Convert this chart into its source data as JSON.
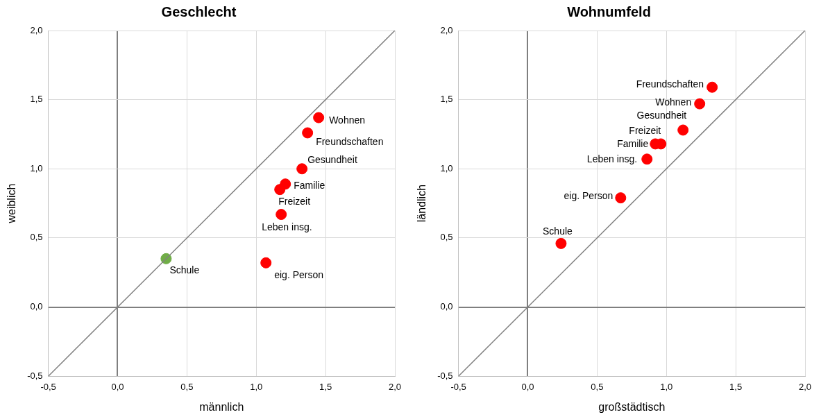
{
  "chart_data": [
    {
      "type": "scatter",
      "title": "Geschlecht",
      "xlabel": "männlich",
      "ylabel": "weiblich",
      "xlim": [
        -0.5,
        2
      ],
      "ylim": [
        -0.5,
        2
      ],
      "xticks": [
        {
          "value": -0.5,
          "label": "-0,5"
        },
        {
          "value": 0,
          "label": "0,0"
        },
        {
          "value": 0.5,
          "label": "0,5"
        },
        {
          "value": 1,
          "label": "1,0"
        },
        {
          "value": 1.5,
          "label": "1,5"
        },
        {
          "value": 2,
          "label": "2,0"
        }
      ],
      "yticks": [
        {
          "value": -0.5,
          "label": "-0,5"
        },
        {
          "value": 0,
          "label": "0,0"
        },
        {
          "value": 0.5,
          "label": "0,5"
        },
        {
          "value": 1,
          "label": "1,0"
        },
        {
          "value": 1.5,
          "label": "1,5"
        },
        {
          "value": 2,
          "label": "2,0"
        }
      ],
      "grid": true,
      "legend": false,
      "marker": "circle",
      "series": [
        {
          "type": "line",
          "marker": "none",
          "color": "#808080",
          "x": [
            -0.5,
            2
          ],
          "values": [
            -0.5,
            2
          ]
        },
        {
          "x": [
            1.45,
            1.37,
            1.33,
            1.21,
            1.17,
            1.18,
            1.07,
            0.35
          ],
          "values": [
            1.37,
            1.26,
            1.0,
            0.89,
            0.85,
            0.67,
            0.32,
            0.35
          ],
          "colors": [
            "#ff0000",
            "#ff0000",
            "#ff0000",
            "#ff0000",
            "#ff0000",
            "#ff0000",
            "#ff0000",
            "#70ad47"
          ]
        }
      ],
      "annotations": [
        {
          "text": "Wohnen",
          "x": 1.45,
          "y": 1.37
        },
        {
          "text": "Freundschaften",
          "x": 1.37,
          "y": 1.26
        },
        {
          "text": "Gesundheit",
          "x": 1.33,
          "y": 1.0
        },
        {
          "text": "Familie",
          "x": 1.21,
          "y": 0.89
        },
        {
          "text": "Freizeit",
          "x": 1.17,
          "y": 0.85
        },
        {
          "text": "Leben insg.",
          "x": 1.18,
          "y": 0.67
        },
        {
          "text": "eig. Person",
          "x": 1.07,
          "y": 0.32
        },
        {
          "text": "Schule",
          "x": 0.35,
          "y": 0.35
        }
      ]
    },
    {
      "type": "scatter",
      "title": "Wohnumfeld",
      "xlabel": "großstädtisch",
      "ylabel": "ländlich",
      "xlim": [
        -0.5,
        2
      ],
      "ylim": [
        -0.5,
        2
      ],
      "xticks": [
        {
          "value": -0.5,
          "label": "-0,5"
        },
        {
          "value": 0,
          "label": "0,0"
        },
        {
          "value": 0.5,
          "label": "0,5"
        },
        {
          "value": 1,
          "label": "1,0"
        },
        {
          "value": 1.5,
          "label": "1,5"
        },
        {
          "value": 2,
          "label": "2,0"
        }
      ],
      "yticks": [
        {
          "value": -0.5,
          "label": "-0,5"
        },
        {
          "value": 0,
          "label": "0,0"
        },
        {
          "value": 0.5,
          "label": "0,5"
        },
        {
          "value": 1,
          "label": "1,0"
        },
        {
          "value": 1.5,
          "label": "1,5"
        },
        {
          "value": 2,
          "label": "2,0"
        }
      ],
      "grid": true,
      "legend": false,
      "marker": "circle",
      "series": [
        {
          "type": "line",
          "marker": "none",
          "color": "#808080",
          "x": [
            -0.5,
            2
          ],
          "values": [
            -0.5,
            2
          ]
        },
        {
          "x": [
            1.33,
            1.24,
            1.12,
            0.96,
            0.92,
            0.86,
            0.67,
            0.24
          ],
          "values": [
            1.59,
            1.47,
            1.28,
            1.18,
            1.18,
            1.07,
            0.79,
            0.46
          ],
          "color": "#ff0000"
        }
      ],
      "annotations": [
        {
          "text": "Freundschaften",
          "x": 1.33,
          "y": 1.59
        },
        {
          "text": "Wohnen",
          "x": 1.24,
          "y": 1.47
        },
        {
          "text": "Gesundheit",
          "x": 1.12,
          "y": 1.28
        },
        {
          "text": "Freizeit",
          "x": 0.96,
          "y": 1.18
        },
        {
          "text": "Familie",
          "x": 0.92,
          "y": 1.18
        },
        {
          "text": "Leben insg.",
          "x": 0.86,
          "y": 1.07
        },
        {
          "text": "eig. Person",
          "x": 0.67,
          "y": 0.79
        },
        {
          "text": "Schule",
          "x": 0.24,
          "y": 0.46
        }
      ]
    }
  ]
}
